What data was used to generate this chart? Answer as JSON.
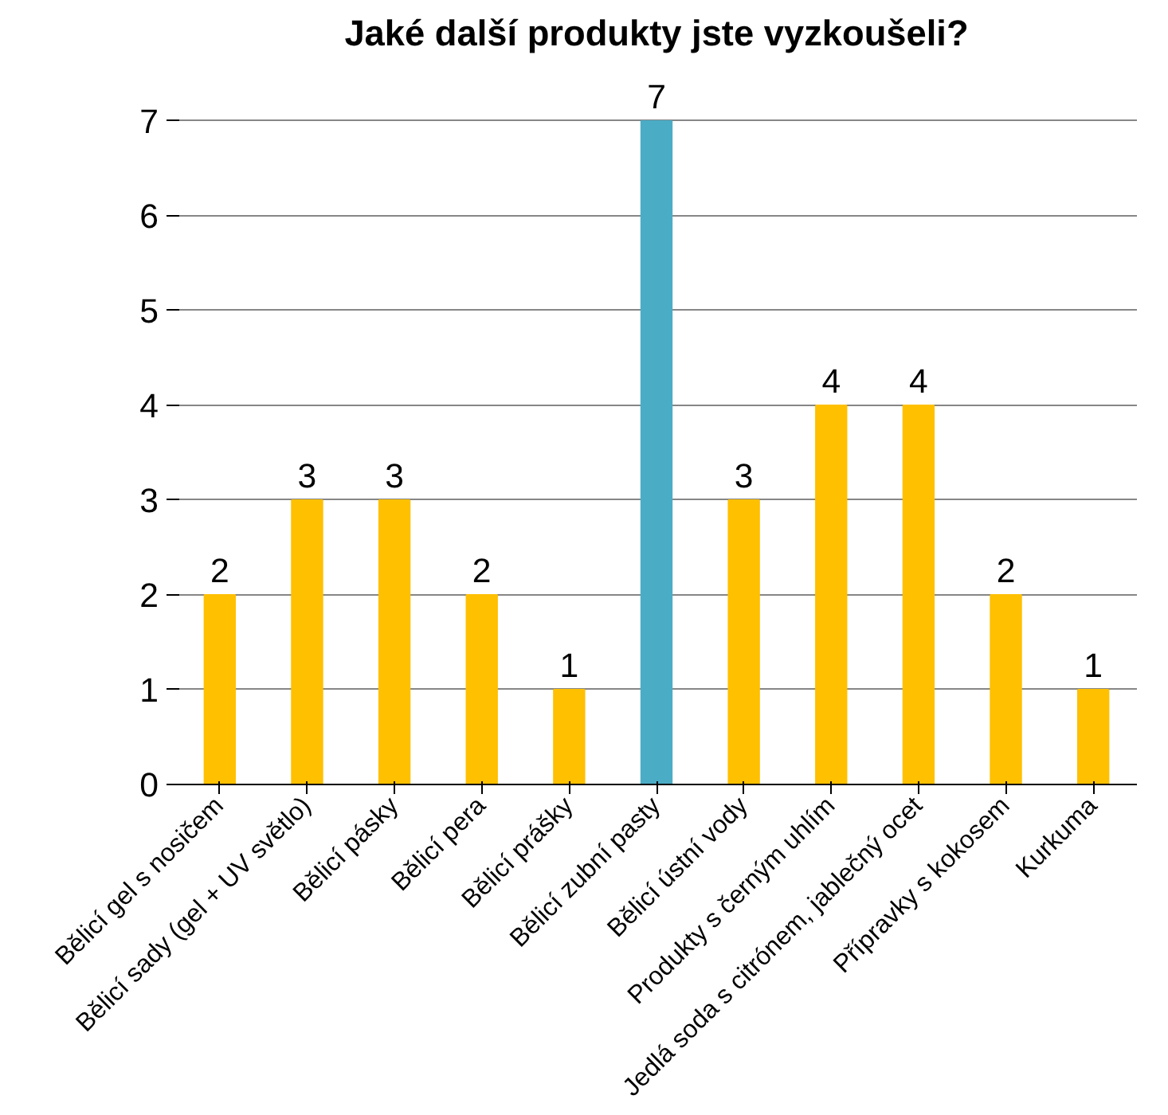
{
  "chart_data": {
    "type": "bar",
    "title": "Jaké další produkty jste vyzkoušeli?",
    "categories": [
      "Bělicí gel s nosičem",
      "Bělicí sady (gel + UV světlo)",
      "Bělicí pásky",
      "Bělicí pera",
      "Bělicí prášky",
      "Bělicí zubní pasty",
      "Bělicí ústní vody",
      "Produkty s černým uhlím",
      "Jedlá soda s citrónem, jablečný ocet",
      "Přípravky s kokosem",
      "Kurkuma"
    ],
    "values": [
      2,
      3,
      3,
      2,
      1,
      7,
      3,
      4,
      4,
      2,
      1
    ],
    "colors": [
      "#ffc000",
      "#ffc000",
      "#ffc000",
      "#ffc000",
      "#ffc000",
      "#4bacc6",
      "#ffc000",
      "#ffc000",
      "#ffc000",
      "#ffc000",
      "#ffc000"
    ],
    "ylim": [
      0,
      7
    ],
    "yticks": [
      0,
      1,
      2,
      3,
      4,
      5,
      6,
      7
    ],
    "grid": "y",
    "data_labels": true
  }
}
